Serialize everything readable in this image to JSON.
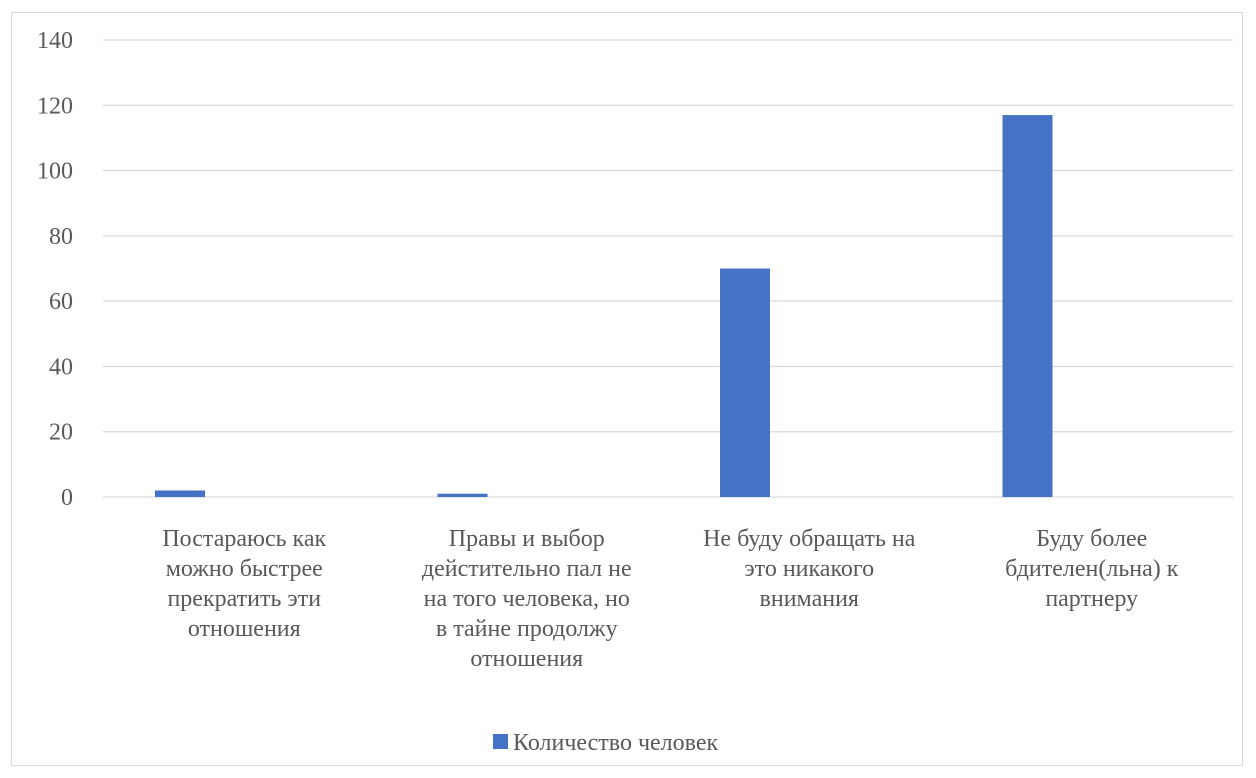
{
  "chart_data": {
    "type": "bar",
    "categories": [
      [
        "Постараюсь как",
        "можно быстрее",
        "прекратить эти",
        "отношения"
      ],
      [
        "Правы и выбор",
        "дейстительно пал не",
        "на того человека, но",
        "в тайне продолжу",
        "отношения"
      ],
      [
        "Не буду обращать на",
        "это никакого",
        "внимания"
      ],
      [
        "Буду более",
        "бдителен(льна) к",
        "партнеру"
      ]
    ],
    "series": [
      {
        "name": "Количество человек",
        "values": [
          2,
          1,
          70,
          117
        ]
      }
    ],
    "ylim": [
      0,
      140
    ],
    "yticks": [
      0,
      20,
      40,
      60,
      80,
      100,
      120,
      140
    ],
    "grid": true,
    "legend": "bottom",
    "colors": {
      "bar": "#4472c4",
      "grid": "#d9d9d9",
      "axis": "#d9d9d9",
      "text": "#595959"
    }
  }
}
